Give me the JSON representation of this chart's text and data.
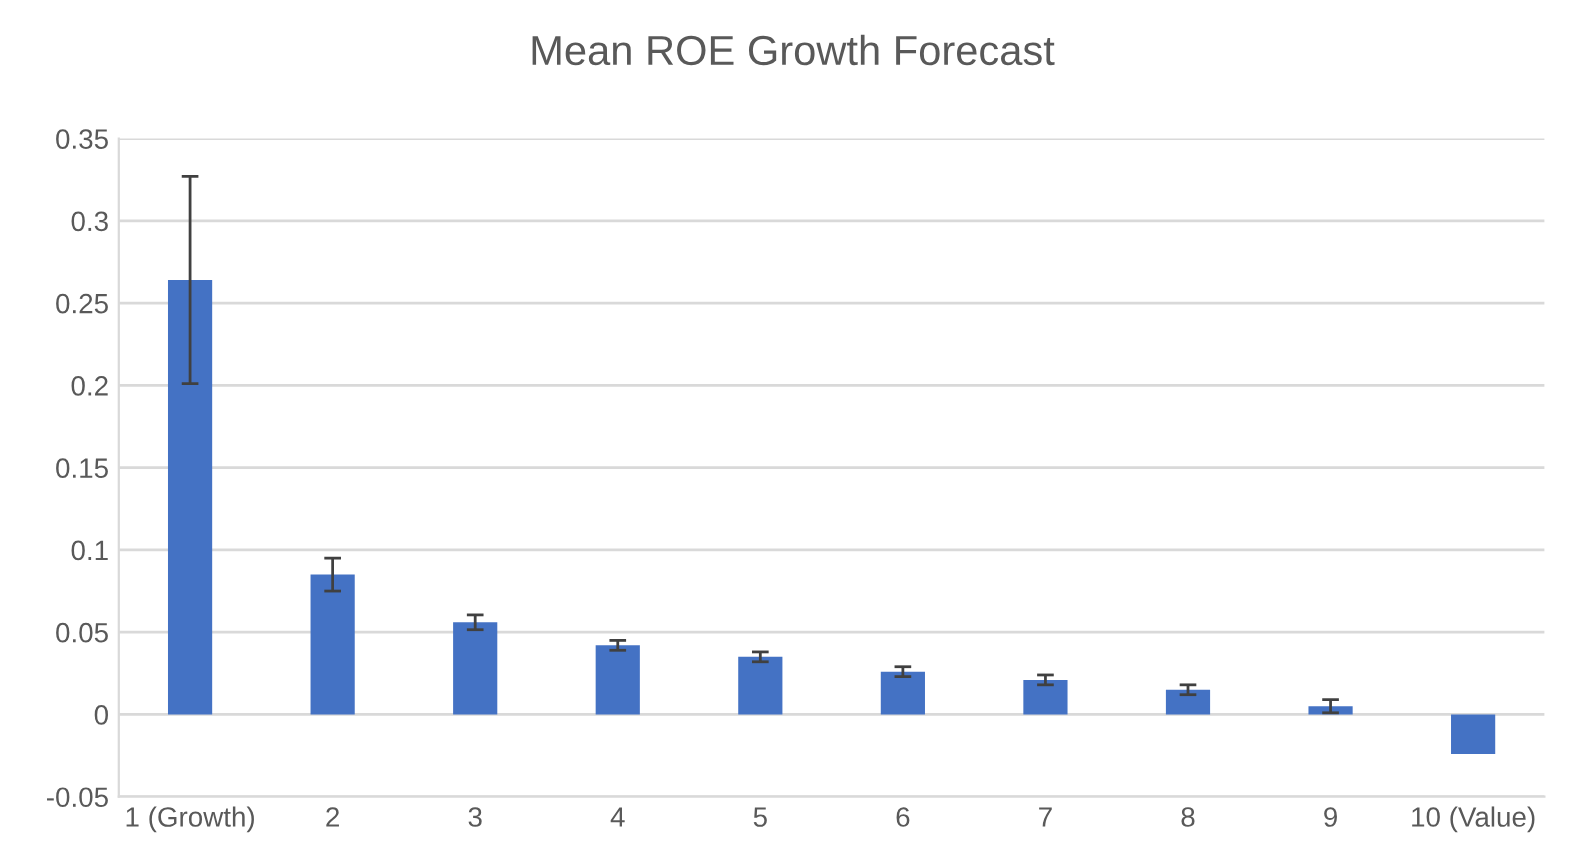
{
  "chart_data": {
    "type": "bar",
    "title": "Mean ROE Growth Forecast",
    "categories": [
      "1 (Growth)",
      "2",
      "3",
      "4",
      "5",
      "6",
      "7",
      "8",
      "9",
      "10 (Value)"
    ],
    "values": [
      0.264,
      0.085,
      0.056,
      0.042,
      0.035,
      0.026,
      0.021,
      0.015,
      0.005,
      -0.024
    ],
    "errors": [
      0.063,
      0.01,
      0.0045,
      0.003,
      0.003,
      0.003,
      0.003,
      0.003,
      0.004,
      null
    ],
    "color": "#4472c4",
    "ylim": [
      -0.05,
      0.35
    ],
    "yticks": [
      -0.05,
      0,
      0.05,
      0.1,
      0.15,
      0.2,
      0.25,
      0.3,
      0.35
    ],
    "grid": "y",
    "legend": false
  }
}
